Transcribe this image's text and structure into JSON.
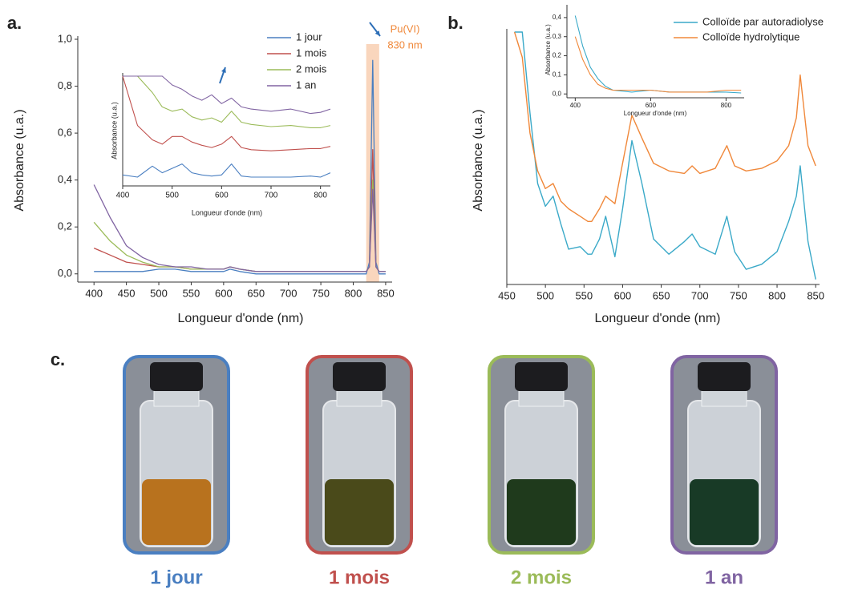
{
  "chart_data": [
    {
      "type": "line",
      "panel": "a.",
      "xlabel": "Longueur d'onde (nm)",
      "ylabel": "Absorbance (u.a.)",
      "x": [
        400,
        425,
        450,
        475,
        500,
        525,
        550,
        575,
        600,
        610,
        625,
        650,
        700,
        750,
        800,
        820,
        825,
        830,
        835,
        840,
        850
      ],
      "series": [
        {
          "name": "1 jour",
          "color": "#4a7fc1",
          "values": [
            0.01,
            0.01,
            0.01,
            0.01,
            0.02,
            0.02,
            0.01,
            0.01,
            0.01,
            0.02,
            0.01,
            0.0,
            0.0,
            0.0,
            0.0,
            0.0,
            0.05,
            0.91,
            0.05,
            0.0,
            0.0
          ]
        },
        {
          "name": "1 mois",
          "color": "#c0504d",
          "values": [
            0.11,
            0.08,
            0.05,
            0.04,
            0.03,
            0.03,
            0.02,
            0.02,
            0.02,
            0.03,
            0.02,
            0.01,
            0.01,
            0.01,
            0.01,
            0.01,
            0.03,
            0.53,
            0.03,
            0.01,
            0.01
          ]
        },
        {
          "name": "2 mois",
          "color": "#9bbb59",
          "values": [
            0.22,
            0.14,
            0.08,
            0.05,
            0.03,
            0.03,
            0.02,
            0.02,
            0.02,
            0.03,
            0.02,
            0.01,
            0.01,
            0.01,
            0.01,
            0.01,
            0.03,
            0.4,
            0.03,
            0.01,
            0.01
          ]
        },
        {
          "name": "1 an",
          "color": "#8064a2",
          "values": [
            0.38,
            0.24,
            0.12,
            0.07,
            0.04,
            0.03,
            0.03,
            0.02,
            0.02,
            0.03,
            0.02,
            0.01,
            0.01,
            0.01,
            0.01,
            0.01,
            0.03,
            0.36,
            0.03,
            0.01,
            0.01
          ]
        }
      ],
      "xlim": [
        375,
        860
      ],
      "ylim": [
        -0.035,
        1.0
      ],
      "xticks": [
        400,
        450,
        500,
        550,
        600,
        650,
        700,
        750,
        800,
        850
      ],
      "yticks": [
        {
          "value": 0,
          "label": "0,0"
        },
        {
          "value": 0.2,
          "label": "0,2"
        },
        {
          "value": 0.4,
          "label": "0,4"
        },
        {
          "value": 0.6,
          "label": "0,6"
        },
        {
          "value": 0.8,
          "label": "0,8"
        },
        {
          "value": 1.0,
          "label": "1,0"
        }
      ],
      "highlight": [
        820,
        840
      ],
      "highlight_color": "#f9d6bd",
      "annotations": [
        "Pu(VI)",
        "830 nm"
      ],
      "annotation_color": "#f0883a",
      "legend": "top-right"
    },
    {
      "type": "line",
      "xlabel": "Longueur d'onde (nm)",
      "ylabel": "Absorbance (u.a.)",
      "x": [
        400,
        430,
        460,
        480,
        500,
        520,
        540,
        560,
        580,
        600,
        620,
        640,
        660,
        700,
        740,
        780,
        800,
        820
      ],
      "series": [
        {
          "color": "#4a7fc1",
          "values": [
            0.1,
            0.08,
            0.18,
            0.12,
            0.16,
            0.2,
            0.12,
            0.1,
            0.09,
            0.1,
            0.2,
            0.09,
            0.08,
            0.08,
            0.08,
            0.09,
            0.08,
            0.12
          ]
        },
        {
          "color": "#c0504d",
          "values": [
            1.0,
            0.55,
            0.42,
            0.38,
            0.45,
            0.45,
            0.4,
            0.37,
            0.35,
            0.38,
            0.45,
            0.35,
            0.33,
            0.32,
            0.33,
            0.34,
            0.34,
            0.36
          ]
        },
        {
          "color": "#9bbb59",
          "values": [
            1.0,
            1.0,
            0.85,
            0.72,
            0.68,
            0.7,
            0.63,
            0.6,
            0.62,
            0.58,
            0.68,
            0.58,
            0.56,
            0.54,
            0.55,
            0.53,
            0.53,
            0.55
          ]
        },
        {
          "color": "#8064a2",
          "values": [
            1.0,
            1.0,
            1.0,
            1.0,
            0.92,
            0.88,
            0.82,
            0.78,
            0.83,
            0.75,
            0.8,
            0.72,
            0.7,
            0.68,
            0.7,
            0.66,
            0.67,
            0.7
          ]
        }
      ],
      "xlim": [
        400,
        820
      ],
      "ylim": [
        0,
        1.0
      ],
      "xticks": [
        400,
        500,
        600,
        700,
        800
      ]
    },
    {
      "type": "line",
      "panel": "b.",
      "xlabel": "Longueur d'onde (nm)",
      "ylabel": "Absorbance (u.a.)",
      "x": [
        460,
        470,
        480,
        490,
        500,
        510,
        520,
        530,
        545,
        555,
        560,
        570,
        578,
        590,
        600,
        612,
        625,
        640,
        660,
        680,
        690,
        700,
        720,
        735,
        745,
        760,
        780,
        800,
        815,
        825,
        830,
        840,
        850
      ],
      "series": [
        {
          "name": "Colloïde par autoradiolyse",
          "color": "#3aa9c8",
          "values": [
            1.0,
            1.0,
            0.68,
            0.4,
            0.31,
            0.35,
            0.24,
            0.14,
            0.15,
            0.12,
            0.12,
            0.18,
            0.27,
            0.11,
            0.3,
            0.57,
            0.4,
            0.18,
            0.12,
            0.17,
            0.2,
            0.15,
            0.12,
            0.27,
            0.13,
            0.06,
            0.08,
            0.13,
            0.25,
            0.35,
            0.47,
            0.17,
            0.02
          ]
        },
        {
          "name": "Colloïde hydrolytique",
          "color": "#f0883a",
          "values": [
            1.0,
            0.9,
            0.6,
            0.45,
            0.38,
            0.4,
            0.33,
            0.3,
            0.27,
            0.25,
            0.25,
            0.3,
            0.35,
            0.32,
            0.48,
            0.67,
            0.58,
            0.48,
            0.45,
            0.44,
            0.47,
            0.44,
            0.46,
            0.55,
            0.47,
            0.45,
            0.46,
            0.49,
            0.55,
            0.66,
            0.83,
            0.55,
            0.47
          ]
        }
      ],
      "xlim": [
        450,
        855
      ],
      "ylim": [
        0,
        1.0
      ],
      "xticks": [
        450,
        500,
        550,
        600,
        650,
        700,
        750,
        800,
        850
      ],
      "legend": "top-right"
    },
    {
      "type": "line",
      "xlabel": "Longueur d'onde (nm)",
      "ylabel": "Absorbance (u.a.)",
      "x": [
        400,
        420,
        440,
        460,
        480,
        500,
        550,
        600,
        650,
        700,
        750,
        800,
        840
      ],
      "series": [
        {
          "color": "#3aa9c8",
          "values": [
            0.41,
            0.25,
            0.14,
            0.08,
            0.04,
            0.02,
            0.01,
            0.02,
            0.01,
            0.01,
            0.01,
            0.01,
            0.005
          ]
        },
        {
          "color": "#f0883a",
          "values": [
            0.3,
            0.18,
            0.1,
            0.05,
            0.03,
            0.02,
            0.02,
            0.02,
            0.01,
            0.01,
            0.01,
            0.02,
            0.02
          ]
        }
      ],
      "xlim": [
        378,
        848
      ],
      "ylim": [
        -0.02,
        0.45
      ],
      "xticks": [
        400,
        600,
        800
      ],
      "yticks": [
        {
          "value": 0,
          "label": "0,0"
        },
        {
          "value": 0.1,
          "label": "0,1"
        },
        {
          "value": 0.2,
          "label": "0,2"
        },
        {
          "value": 0.3,
          "label": "0,3"
        },
        {
          "value": 0.4,
          "label": "0,4"
        }
      ]
    }
  ],
  "photos": {
    "panel": "c.",
    "items": [
      {
        "caption": "1 jour",
        "color": "#4a7fc1",
        "liquid": "#b8721e"
      },
      {
        "caption": "1 mois",
        "color": "#c0504d",
        "liquid": "#4a4a1a"
      },
      {
        "caption": "2 mois",
        "color": "#9bbb59",
        "liquid": "#1f3a1c"
      },
      {
        "caption": "1 an",
        "color": "#8064a2",
        "liquid": "#183a26"
      }
    ]
  }
}
